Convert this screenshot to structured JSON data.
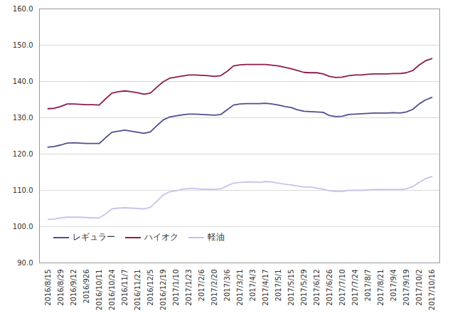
{
  "chart_data": {
    "type": "line",
    "categories": [
      "2016/8/15",
      null,
      "2016/8/29",
      null,
      "2016/9/12",
      null,
      "2016/926",
      null,
      "2016/10/11",
      null,
      "2016/10/24",
      null,
      "2016/11/7",
      null,
      "2016/11/21",
      null,
      "2016/12/5",
      null,
      "2016/12/19",
      null,
      "2017/1/10",
      null,
      "2017/1/23",
      null,
      "2017/2/6",
      null,
      "2017/2/20",
      null,
      "2017/3/6",
      null,
      "2017/3/21",
      null,
      "2017/4/3",
      null,
      "2017/4/17",
      null,
      "2017/5/1",
      null,
      "2017/5/15",
      null,
      "2017/5/29",
      null,
      "2017/6/12",
      null,
      "2017/6/26",
      null,
      "2017/7/10",
      null,
      "2017/7/24",
      null,
      "2017/8/7",
      null,
      "2017/8/21",
      null,
      "2017/9/4",
      null,
      "2017/9/19",
      null,
      "2017/10/2",
      null,
      "2017/10/16"
    ],
    "series": [
      {
        "name": "レギュラー",
        "color": "#4e4e8e",
        "values": [
          121.9,
          122.1,
          122.5,
          123.0,
          123.1,
          123.0,
          122.9,
          122.9,
          122.9,
          124.5,
          126.0,
          126.3,
          126.6,
          126.3,
          126.0,
          125.7,
          126.1,
          127.8,
          129.4,
          130.2,
          130.5,
          130.8,
          131.0,
          131.0,
          130.9,
          130.8,
          130.7,
          130.9,
          132.2,
          133.5,
          133.8,
          133.9,
          133.9,
          133.9,
          134.0,
          133.8,
          133.5,
          133.1,
          132.8,
          132.2,
          131.8,
          131.7,
          131.6,
          131.5,
          130.6,
          130.3,
          130.4,
          130.9,
          131.0,
          131.1,
          131.2,
          131.3,
          131.3,
          131.3,
          131.4,
          131.3,
          131.6,
          132.3,
          133.8,
          134.9,
          135.6
        ]
      },
      {
        "name": "ハイオク",
        "color": "#8c1c4e",
        "values": [
          132.5,
          132.6,
          133.1,
          133.8,
          133.8,
          133.7,
          133.6,
          133.6,
          133.5,
          135.2,
          136.8,
          137.2,
          137.4,
          137.2,
          136.9,
          136.5,
          136.8,
          138.4,
          139.9,
          140.9,
          141.2,
          141.5,
          141.8,
          141.8,
          141.7,
          141.6,
          141.4,
          141.6,
          142.8,
          144.3,
          144.6,
          144.7,
          144.7,
          144.7,
          144.7,
          144.5,
          144.3,
          143.9,
          143.5,
          143.0,
          142.5,
          142.4,
          142.4,
          142.1,
          141.4,
          141.1,
          141.2,
          141.6,
          141.8,
          141.8,
          142.0,
          142.1,
          142.1,
          142.1,
          142.2,
          142.2,
          142.4,
          143.0,
          144.5,
          145.7,
          146.3
        ]
      },
      {
        "name": "軽油",
        "color": "#c4c4ee",
        "values": [
          102.0,
          102.1,
          102.4,
          102.6,
          102.6,
          102.6,
          102.5,
          102.4,
          102.4,
          103.5,
          104.9,
          105.1,
          105.2,
          105.1,
          105.0,
          104.9,
          105.3,
          107.0,
          108.7,
          109.6,
          109.9,
          110.3,
          110.5,
          110.5,
          110.3,
          110.3,
          110.2,
          110.4,
          111.2,
          112.0,
          112.2,
          112.3,
          112.3,
          112.2,
          112.4,
          112.3,
          112.0,
          111.7,
          111.5,
          111.2,
          110.9,
          110.9,
          110.6,
          110.3,
          109.9,
          109.7,
          109.7,
          110.0,
          110.0,
          110.0,
          110.1,
          110.2,
          110.2,
          110.2,
          110.2,
          110.2,
          110.4,
          111.0,
          112.2,
          113.2,
          113.8
        ]
      }
    ],
    "ylim": [
      90,
      160
    ],
    "yticks": [
      {
        "value": 90,
        "label": "90.0"
      },
      {
        "value": 100,
        "label": "100.0"
      },
      {
        "value": 110,
        "label": "110.0"
      },
      {
        "value": 120,
        "label": "120.0"
      },
      {
        "value": 130,
        "label": "130.0"
      },
      {
        "value": 140,
        "label": "140.0"
      },
      {
        "value": 150,
        "label": "150.0"
      },
      {
        "value": 160,
        "label": "160.0"
      }
    ],
    "grid": true,
    "legend": "lower left"
  }
}
